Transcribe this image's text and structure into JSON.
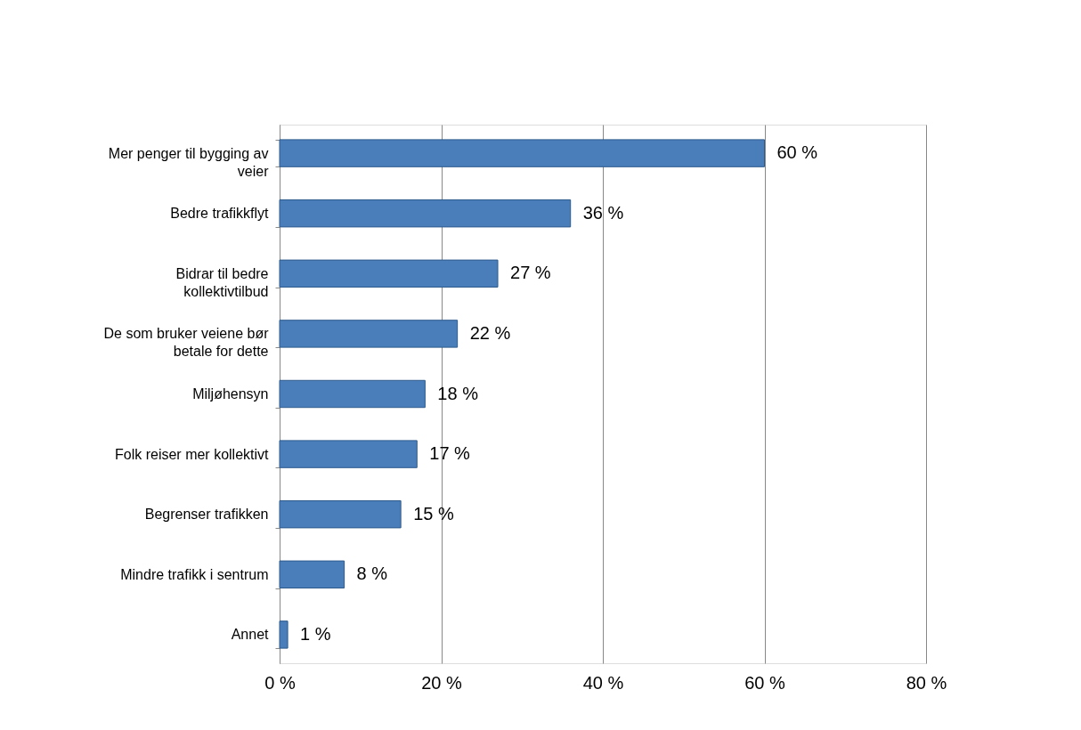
{
  "chart_data": {
    "type": "bar",
    "orientation": "horizontal",
    "categories": [
      "Mer penger til bygging av veier",
      "Bedre trafikkflyt",
      "Bidrar til bedre kollektivtilbud",
      "De som bruker veiene bør betale for dette",
      "Miljøhensyn",
      "Folk reiser mer kollektivt",
      "Begrenser trafikken",
      "Mindre trafikk i sentrum",
      "Annet"
    ],
    "values": [
      60,
      36,
      27,
      22,
      18,
      17,
      15,
      8,
      1
    ],
    "value_labels": [
      "60 %",
      "36 %",
      "27 %",
      "22 %",
      "18 %",
      "17 %",
      "15 %",
      "8 %",
      "1 %"
    ],
    "color": "#4a7ebb",
    "xlim": [
      0,
      80
    ],
    "xticks": [
      {
        "value": 0,
        "label": "0 %"
      },
      {
        "value": 20,
        "label": "20 %"
      },
      {
        "value": 40,
        "label": "40 %"
      },
      {
        "value": 60,
        "label": "60 %"
      },
      {
        "value": 80,
        "label": "80 %"
      }
    ],
    "grid": "x"
  }
}
